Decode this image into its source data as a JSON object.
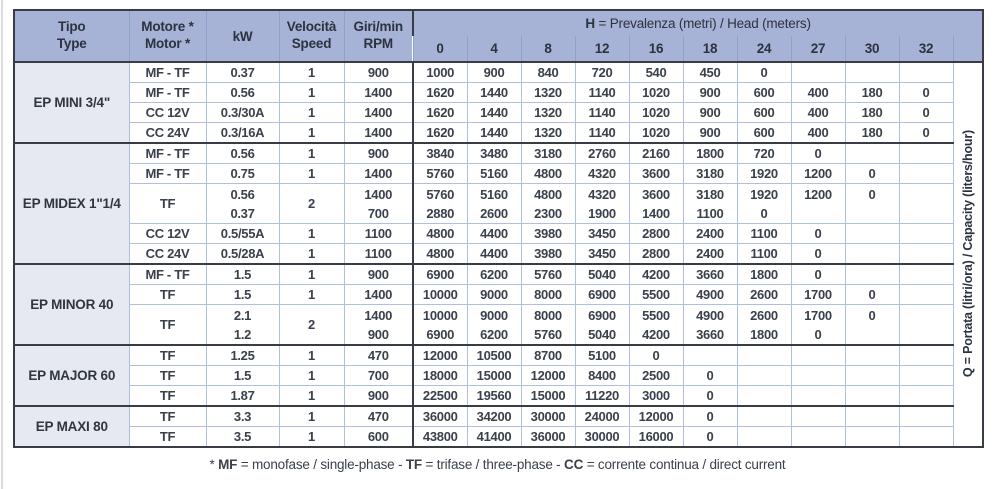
{
  "header": {
    "tipo": {
      "line1": "Tipo",
      "line2": "Type"
    },
    "motore": {
      "line1": "Motore *",
      "line2": "Motor *"
    },
    "kw": "kW",
    "velocita": {
      "line1": "Velocità",
      "line2": "Speed"
    },
    "giri": {
      "line1": "Giri/min",
      "line2": "RPM"
    },
    "head_group": {
      "bold": "H",
      "rest": " = Prevalenza (metri) / Head (meters)"
    },
    "head_columns": [
      "0",
      "4",
      "8",
      "12",
      "16",
      "18",
      "24",
      "27",
      "30",
      "32"
    ]
  },
  "capacity_label": {
    "bold": "Q",
    "rest": " = Portata (litri/ora) / Capacity (liters/hour)"
  },
  "groups": [
    {
      "name": "EP MINI 3/4\"",
      "rows": [
        {
          "motor": "MF - TF",
          "kw": [
            "0.37"
          ],
          "speed": "1",
          "rpm": [
            "900"
          ],
          "flows": [
            [
              "1000",
              "900",
              "840",
              "720",
              "540",
              "450",
              "0",
              "",
              "",
              ""
            ]
          ]
        },
        {
          "motor": "MF - TF",
          "kw": [
            "0.56"
          ],
          "speed": "1",
          "rpm": [
            "1400"
          ],
          "flows": [
            [
              "1620",
              "1440",
              "1320",
              "1140",
              "1020",
              "900",
              "600",
              "400",
              "180",
              "0"
            ]
          ]
        },
        {
          "motor": "CC 12V",
          "kw": [
            "0.3/30A"
          ],
          "speed": "1",
          "rpm": [
            "1400"
          ],
          "flows": [
            [
              "1620",
              "1440",
              "1320",
              "1140",
              "1020",
              "900",
              "600",
              "400",
              "180",
              "0"
            ]
          ]
        },
        {
          "motor": "CC 24V",
          "kw": [
            "0.3/16A"
          ],
          "speed": "1",
          "rpm": [
            "1400"
          ],
          "flows": [
            [
              "1620",
              "1440",
              "1320",
              "1140",
              "1020",
              "900",
              "600",
              "400",
              "180",
              "0"
            ]
          ]
        }
      ]
    },
    {
      "name": "EP MIDEX 1\"1/4",
      "rows": [
        {
          "motor": "MF - TF",
          "kw": [
            "0.56"
          ],
          "speed": "1",
          "rpm": [
            "900"
          ],
          "flows": [
            [
              "3840",
              "3480",
              "3180",
              "2760",
              "2160",
              "1800",
              "720",
              "0",
              "",
              ""
            ]
          ]
        },
        {
          "motor": "MF - TF",
          "kw": [
            "0.75"
          ],
          "speed": "1",
          "rpm": [
            "1400"
          ],
          "flows": [
            [
              "5760",
              "5160",
              "4800",
              "4320",
              "3600",
              "3180",
              "1920",
              "1200",
              "0",
              ""
            ]
          ]
        },
        {
          "motor": "TF",
          "kw": [
            "0.56",
            "0.37"
          ],
          "speed": "2",
          "rpm": [
            "1400",
            "700"
          ],
          "flows": [
            [
              "5760",
              "5160",
              "4800",
              "4320",
              "3600",
              "3180",
              "1920",
              "1200",
              "0",
              ""
            ],
            [
              "2880",
              "2600",
              "2300",
              "1900",
              "1400",
              "1100",
              "0",
              "",
              "",
              ""
            ]
          ]
        },
        {
          "motor": "CC 12V",
          "kw": [
            "0.5/55A"
          ],
          "speed": "1",
          "rpm": [
            "1100"
          ],
          "flows": [
            [
              "4800",
              "4400",
              "3980",
              "3450",
              "2800",
              "2400",
              "1100",
              "0",
              "",
              ""
            ]
          ]
        },
        {
          "motor": "CC 24V",
          "kw": [
            "0.5/28A"
          ],
          "speed": "1",
          "rpm": [
            "1100"
          ],
          "flows": [
            [
              "4800",
              "4400",
              "3980",
              "3450",
              "2800",
              "2400",
              "1100",
              "0",
              "",
              ""
            ]
          ]
        }
      ]
    },
    {
      "name": "EP MINOR 40",
      "rows": [
        {
          "motor": "MF - TF",
          "kw": [
            "1.5"
          ],
          "speed": "1",
          "rpm": [
            "900"
          ],
          "flows": [
            [
              "6900",
              "6200",
              "5760",
              "5040",
              "4200",
              "3660",
              "1800",
              "0",
              "",
              ""
            ]
          ]
        },
        {
          "motor": "TF",
          "kw": [
            "1.5"
          ],
          "speed": "1",
          "rpm": [
            "1400"
          ],
          "flows": [
            [
              "10000",
              "9000",
              "8000",
              "6900",
              "5500",
              "4900",
              "2600",
              "1700",
              "0",
              ""
            ]
          ]
        },
        {
          "motor": "TF",
          "kw": [
            "2.1",
            "1.2"
          ],
          "speed": "2",
          "rpm": [
            "1400",
            "900"
          ],
          "flows": [
            [
              "10000",
              "9000",
              "8000",
              "6900",
              "5500",
              "4900",
              "2600",
              "1700",
              "0",
              ""
            ],
            [
              "6900",
              "6200",
              "5760",
              "5040",
              "4200",
              "3660",
              "1800",
              "0",
              "",
              ""
            ]
          ]
        }
      ]
    },
    {
      "name": "EP MAJOR 60",
      "rows": [
        {
          "motor": "TF",
          "kw": [
            "1.25"
          ],
          "speed": "1",
          "rpm": [
            "470"
          ],
          "flows": [
            [
              "12000",
              "10500",
              "8700",
              "5100",
              "0",
              "",
              "",
              "",
              "",
              ""
            ]
          ]
        },
        {
          "motor": "TF",
          "kw": [
            "1.5"
          ],
          "speed": "1",
          "rpm": [
            "700"
          ],
          "flows": [
            [
              "18000",
              "15000",
              "12000",
              "8400",
              "2500",
              "0",
              "",
              "",
              "",
              ""
            ]
          ]
        },
        {
          "motor": "TF",
          "kw": [
            "1.87"
          ],
          "speed": "1",
          "rpm": [
            "900"
          ],
          "flows": [
            [
              "22500",
              "19560",
              "15000",
              "11220",
              "3000",
              "0",
              "",
              "",
              "",
              ""
            ]
          ]
        }
      ]
    },
    {
      "name": "EP MAXI 80",
      "rows": [
        {
          "motor": "TF",
          "kw": [
            "3.3"
          ],
          "speed": "1",
          "rpm": [
            "470"
          ],
          "flows": [
            [
              "36000",
              "34200",
              "30000",
              "24000",
              "12000",
              "0",
              "",
              "",
              "",
              ""
            ]
          ]
        },
        {
          "motor": "TF",
          "kw": [
            "3.5"
          ],
          "speed": "1",
          "rpm": [
            "600"
          ],
          "flows": [
            [
              "43800",
              "41400",
              "36000",
              "30000",
              "16000",
              "0",
              "",
              "",
              "",
              ""
            ]
          ]
        }
      ]
    }
  ],
  "footnote_parts": [
    {
      "t": "* ",
      "b": false
    },
    {
      "t": "MF",
      "b": true
    },
    {
      "t": " = monofase / single-phase - ",
      "b": false
    },
    {
      "t": "TF",
      "b": true
    },
    {
      "t": " = trifase / three-phase - ",
      "b": false
    },
    {
      "t": "CC",
      "b": true
    },
    {
      "t": " = corrente continua / direct current",
      "b": false
    }
  ],
  "colors": {
    "header_bg": "#a6b3d7",
    "group_bg": "#e6e8f2",
    "border_dark": "#383d45",
    "border_light": "#b0bfde",
    "text": "#3a414b"
  }
}
